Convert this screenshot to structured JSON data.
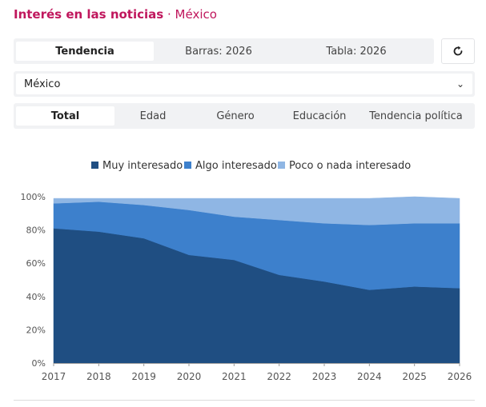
{
  "header": {
    "title": "Interés en las noticias",
    "separator": "·",
    "country": "México"
  },
  "view_tabs": [
    {
      "label": "Tendencia",
      "active": true
    },
    {
      "label": "Barras: 2026",
      "active": false
    },
    {
      "label": "Tabla: 2026",
      "active": false
    }
  ],
  "refresh": {
    "icon": "refresh-icon"
  },
  "country_select": {
    "value": "México",
    "icon": "chevron-down-icon"
  },
  "segment_tabs": [
    {
      "label": "Total",
      "active": true
    },
    {
      "label": "Edad",
      "active": false
    },
    {
      "label": "Género",
      "active": false
    },
    {
      "label": "Educación",
      "active": false
    },
    {
      "label": "Tendencia política",
      "active": false
    }
  ],
  "colors": {
    "accent": "#c0175d",
    "muy": "#1f4e82",
    "algo": "#3d80cc",
    "poco": "#8fb6e4"
  },
  "chart_data": {
    "type": "area",
    "stacked": true,
    "x": [
      "2017",
      "2018",
      "2019",
      "2020",
      "2021",
      "2022",
      "2023",
      "2024",
      "2025",
      "2026"
    ],
    "series": [
      {
        "name": "Muy interesado",
        "values": [
          81,
          79,
          75,
          65,
          62,
          53,
          49,
          44,
          46,
          45
        ]
      },
      {
        "name": "Algo interesado",
        "values": [
          15,
          18,
          20,
          27,
          26,
          33,
          35,
          39,
          38,
          39
        ]
      },
      {
        "name": "Poco o nada interesado",
        "values": [
          3,
          2,
          4,
          7,
          11,
          13,
          15,
          16,
          16,
          15
        ]
      }
    ],
    "y_ticks": [
      "0%",
      "20%",
      "40%",
      "60%",
      "80%",
      "100%"
    ],
    "ylim": [
      0,
      100
    ],
    "legend_position": "top",
    "grid": false
  }
}
